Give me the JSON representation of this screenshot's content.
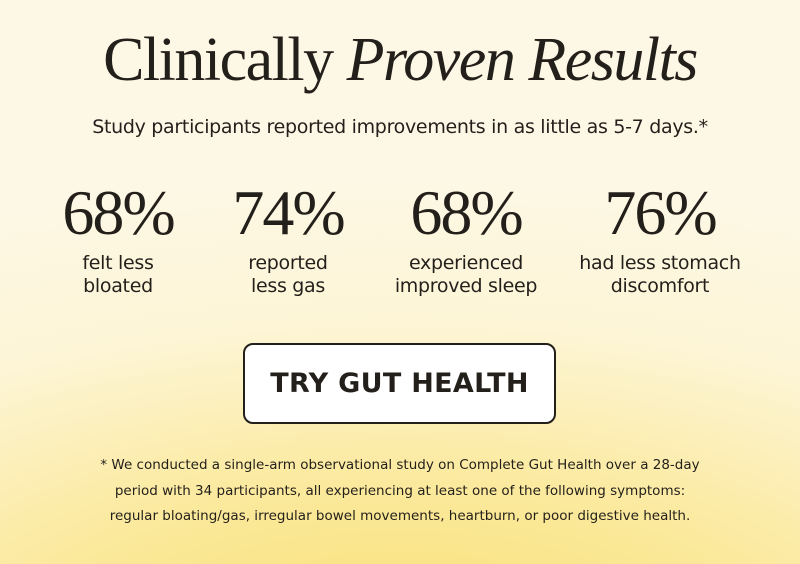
{
  "header": {
    "title_plain": "Clinically",
    "title_italic": "Proven Results",
    "subtitle": "Study participants reported improvements in as little as 5-7 days.*"
  },
  "stats": [
    {
      "value": "68%",
      "label": [
        "felt less",
        "bloated"
      ]
    },
    {
      "value": "74%",
      "label": [
        "reported",
        "less gas"
      ]
    },
    {
      "value": "68%",
      "label": [
        "experienced",
        "improved sleep"
      ]
    },
    {
      "value": "76%",
      "label": [
        "had less stomach",
        "discomfort"
      ]
    }
  ],
  "button": {
    "label": "TRY GUT HEALTH"
  },
  "footnote": "* We conducted a single-arm observational study on Complete Gut Health over a 28-day period with 34 participants, all experiencing at least one of the following symptoms: regular bloating/gas, irregular bowel movements, heartburn, or poor digestive health."
}
